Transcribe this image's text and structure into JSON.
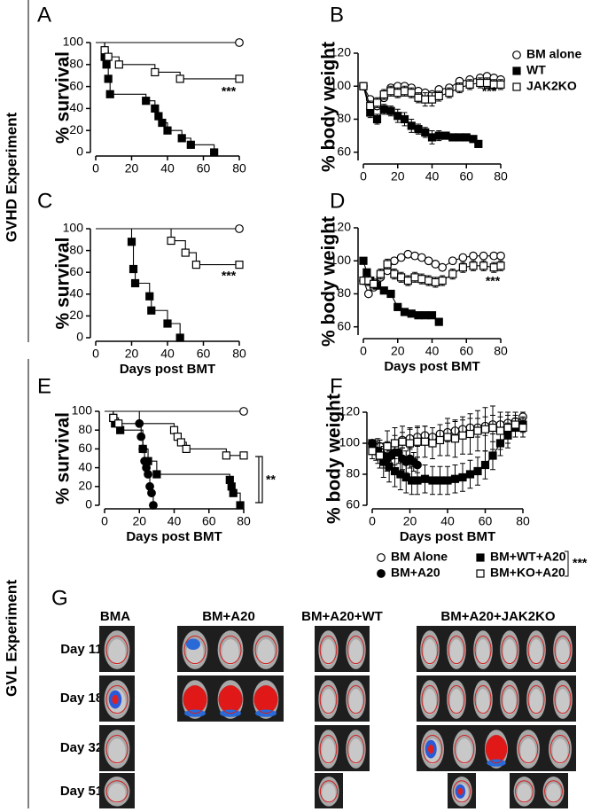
{
  "side_labels": [
    "GVHD Experiment",
    "GVL Experiment"
  ],
  "chart_data": [
    {
      "type": "step",
      "panel": "A",
      "ylabel": "% survival",
      "xlim": [
        0,
        80
      ],
      "xticks": [
        0,
        20,
        40,
        60,
        80
      ],
      "ylim": [
        0,
        100
      ],
      "yticks": [
        0,
        20,
        40,
        60,
        80,
        100
      ],
      "annotation": "***",
      "series": [
        {
          "marker": "open-circle",
          "color": "#000000",
          "x": [
            0,
            80
          ],
          "values": [
            100,
            100
          ]
        },
        {
          "marker": "filled-square",
          "color": "#000000",
          "x": [
            0,
            5,
            6,
            7,
            8,
            28,
            33,
            35,
            37,
            40,
            48,
            53,
            66
          ],
          "values": [
            100,
            87,
            80,
            67,
            53,
            47,
            40,
            33,
            27,
            20,
            13,
            7,
            0
          ]
        },
        {
          "marker": "open-square",
          "color": "#000000",
          "x": [
            0,
            5,
            7,
            13,
            33,
            47,
            80
          ],
          "values": [
            100,
            93,
            87,
            80,
            73,
            67,
            67
          ]
        }
      ]
    },
    {
      "type": "line",
      "panel": "B",
      "ylabel": "% body weight",
      "xlim": [
        0,
        80
      ],
      "xticks": [
        0,
        20,
        40,
        60,
        80
      ],
      "ylim": [
        55,
        120
      ],
      "yticks": [
        60,
        80,
        100,
        120
      ],
      "annotation": "***",
      "series": [
        {
          "name": "BM alone",
          "marker": "open-circle",
          "color": "#000000",
          "x": [
            0,
            4,
            8,
            12,
            16,
            20,
            24,
            28,
            32,
            36,
            40,
            44,
            50,
            56,
            62,
            68,
            72,
            76,
            80
          ],
          "values": [
            100,
            92,
            88,
            93,
            99,
            100,
            100,
            99,
            97,
            96,
            95,
            98,
            99,
            103,
            104,
            105,
            106,
            105,
            104
          ]
        },
        {
          "name": "WT",
          "marker": "filled-square",
          "color": "#000000",
          "x": [
            0,
            4,
            8,
            12,
            16,
            20,
            24,
            28,
            32,
            36,
            40,
            44,
            48,
            52,
            56,
            60,
            64,
            67
          ],
          "values": [
            100,
            84,
            80,
            86,
            85,
            82,
            80,
            76,
            74,
            72,
            69,
            70,
            70,
            69,
            69,
            69,
            68,
            65
          ],
          "errors": [
            0,
            3,
            3,
            3,
            3,
            4,
            4,
            4,
            3,
            3,
            4,
            3,
            2,
            2,
            2,
            2,
            2,
            0
          ]
        },
        {
          "name": "JAK2KO",
          "marker": "open-square",
          "color": "#000000",
          "x": [
            0,
            4,
            8,
            12,
            16,
            20,
            24,
            28,
            32,
            36,
            40,
            44,
            50,
            56,
            62,
            68,
            72,
            76,
            80
          ],
          "values": [
            100,
            88,
            90,
            95,
            97,
            96,
            97,
            96,
            93,
            92,
            92,
            94,
            96,
            99,
            101,
            102,
            102,
            101,
            101
          ],
          "errors": [
            0,
            3,
            3,
            3,
            3,
            3,
            3,
            3,
            3,
            4,
            4,
            3,
            3,
            3,
            3,
            3,
            3,
            3,
            3
          ]
        }
      ]
    },
    {
      "type": "step",
      "panel": "C",
      "ylabel": "% survival",
      "xlabel": "Days post BMT",
      "xlim": [
        0,
        80
      ],
      "xticks": [
        0,
        20,
        40,
        60,
        80
      ],
      "ylim": [
        0,
        100
      ],
      "yticks": [
        0,
        20,
        40,
        60,
        80,
        100
      ],
      "annotation": "***",
      "series": [
        {
          "marker": "open-circle",
          "color": "#000000",
          "x": [
            0,
            80
          ],
          "values": [
            100,
            100
          ]
        },
        {
          "marker": "filled-square",
          "color": "#000000",
          "x": [
            0,
            20,
            21,
            22,
            30,
            31,
            40,
            47
          ],
          "values": [
            100,
            88,
            63,
            50,
            38,
            25,
            13,
            0
          ]
        },
        {
          "marker": "open-square",
          "color": "#000000",
          "x": [
            0,
            42,
            50,
            56,
            80
          ],
          "values": [
            100,
            89,
            78,
            67,
            67
          ]
        }
      ]
    },
    {
      "type": "line",
      "panel": "D",
      "ylabel": "% body weight",
      "xlabel": "Days post BMT",
      "xlim": [
        0,
        80
      ],
      "xticks": [
        0,
        20,
        40,
        60,
        80
      ],
      "ylim": [
        55,
        120
      ],
      "yticks": [
        60,
        80,
        100,
        120
      ],
      "annotation": "***",
      "series": [
        {
          "marker": "open-circle",
          "color": "#000000",
          "x": [
            0,
            3,
            6,
            10,
            14,
            18,
            22,
            26,
            30,
            34,
            38,
            42,
            46,
            52,
            58,
            64,
            70,
            76,
            80
          ],
          "values": [
            88,
            80,
            84,
            90,
            94,
            100,
            102,
            104,
            103,
            102,
            100,
            98,
            96,
            100,
            102,
            103,
            103,
            103,
            103
          ]
        },
        {
          "marker": "filled-square",
          "color": "#000000",
          "x": [
            0,
            2,
            4,
            8,
            12,
            16,
            20,
            24,
            28,
            32,
            36,
            40,
            44
          ],
          "values": [
            100,
            93,
            88,
            85,
            82,
            80,
            72,
            69,
            68,
            67,
            67,
            67,
            63
          ],
          "errors": [
            0,
            2,
            2,
            2,
            2,
            2,
            2,
            2,
            2,
            2,
            2,
            2,
            0
          ]
        },
        {
          "marker": "open-square",
          "color": "#000000",
          "x": [
            0,
            3,
            6,
            10,
            14,
            18,
            22,
            26,
            30,
            34,
            38,
            42,
            46,
            52,
            58,
            64,
            70,
            76,
            80
          ],
          "values": [
            88,
            88,
            86,
            92,
            98,
            92,
            90,
            88,
            90,
            89,
            88,
            87,
            88,
            92,
            96,
            97,
            97,
            96,
            97
          ],
          "errors": [
            0,
            3,
            3,
            3,
            3,
            3,
            3,
            3,
            3,
            3,
            3,
            3,
            3,
            3,
            3,
            3,
            3,
            3,
            3
          ]
        }
      ]
    },
    {
      "type": "step",
      "panel": "E",
      "ylabel": "% survival",
      "xlabel": "Days post BMT",
      "xlim": [
        0,
        80
      ],
      "xticks": [
        0,
        20,
        40,
        60,
        80
      ],
      "ylim": [
        0,
        100
      ],
      "yticks": [
        0,
        20,
        40,
        60,
        80,
        100
      ],
      "annotation": "**",
      "series": [
        {
          "marker": "open-circle",
          "color": "#000000",
          "x": [
            0,
            80
          ],
          "values": [
            100,
            100
          ]
        },
        {
          "marker": "filled-circle",
          "color": "#000000",
          "x": [
            0,
            20,
            21,
            22,
            23,
            24,
            25,
            26,
            27,
            28
          ],
          "values": [
            100,
            87,
            73,
            60,
            47,
            40,
            33,
            20,
            13,
            0
          ]
        },
        {
          "marker": "filled-square",
          "color": "#000000",
          "x": [
            0,
            5,
            6,
            9,
            22,
            25,
            30,
            72,
            73,
            74,
            78
          ],
          "values": [
            100,
            93,
            87,
            80,
            60,
            47,
            33,
            27,
            20,
            13,
            0
          ]
        },
        {
          "marker": "open-square",
          "color": "#000000",
          "x": [
            0,
            5,
            8,
            40,
            42,
            44,
            47,
            70,
            80
          ],
          "values": [
            100,
            93,
            87,
            80,
            73,
            67,
            60,
            53,
            53
          ]
        }
      ]
    },
    {
      "type": "line",
      "panel": "F",
      "ylabel": "% body weight",
      "xlabel": "Days post BMT",
      "xlim": [
        0,
        80
      ],
      "xticks": [
        0,
        20,
        40,
        60,
        80
      ],
      "ylim": [
        60,
        120
      ],
      "yticks": [
        60,
        80,
        100,
        120
      ],
      "annotation": "***",
      "series": [
        {
          "name": "BM Alone",
          "marker": "open-circle",
          "color": "#000000",
          "x": [
            0,
            4,
            8,
            12,
            16,
            20,
            24,
            28,
            32,
            36,
            40,
            44,
            48,
            52,
            56,
            60,
            64,
            68,
            72,
            76,
            80
          ],
          "values": [
            100,
            98,
            96,
            100,
            102,
            103,
            104,
            105,
            104,
            106,
            107,
            108,
            109,
            110,
            110,
            111,
            112,
            112,
            113,
            114,
            117
          ],
          "errors": [
            0,
            4,
            5,
            5,
            5,
            6,
            6,
            6,
            6,
            6,
            6,
            6,
            6,
            6,
            6,
            6,
            6,
            5,
            5,
            4,
            3
          ]
        },
        {
          "name": "BM+A20",
          "marker": "filled-circle",
          "color": "#000000",
          "x": [
            0,
            2,
            4,
            6,
            8,
            10,
            12,
            14,
            16,
            18,
            20,
            22,
            24
          ],
          "values": [
            100,
            95,
            92,
            92,
            90,
            92,
            94,
            94,
            90,
            88,
            90,
            88,
            86
          ],
          "errors": [
            0,
            6,
            8,
            8,
            8,
            8,
            8,
            7,
            7,
            7,
            6,
            6,
            5
          ]
        },
        {
          "name": "BM+WT+A20",
          "marker": "filled-square",
          "color": "#000000",
          "x": [
            0,
            3,
            6,
            9,
            12,
            15,
            18,
            21,
            24,
            28,
            32,
            36,
            40,
            44,
            48,
            52,
            56,
            60,
            64,
            68,
            72,
            76,
            80
          ],
          "values": [
            100,
            95,
            88,
            85,
            82,
            80,
            78,
            76,
            76,
            77,
            76,
            76,
            76,
            77,
            78,
            80,
            82,
            86,
            92,
            100,
            105,
            110,
            112
          ],
          "errors": [
            0,
            8,
            10,
            10,
            10,
            10,
            10,
            9,
            9,
            9,
            9,
            9,
            9,
            9,
            9,
            9,
            9,
            9,
            9,
            8,
            8,
            6,
            5
          ]
        },
        {
          "name": "BM+KO+A20",
          "marker": "open-square",
          "color": "#000000",
          "x": [
            0,
            4,
            8,
            12,
            16,
            20,
            24,
            28,
            32,
            36,
            40,
            44,
            48,
            52,
            56,
            60,
            64,
            68,
            72,
            76,
            80
          ],
          "values": [
            95,
            92,
            98,
            100,
            101,
            100,
            101,
            101,
            100,
            102,
            104,
            103,
            105,
            106,
            108,
            109,
            110,
            108,
            110,
            112,
            110
          ],
          "errors": [
            5,
            8,
            10,
            10,
            10,
            10,
            10,
            10,
            10,
            10,
            12,
            12,
            12,
            13,
            13,
            14,
            14,
            12,
            10,
            8,
            6
          ]
        }
      ]
    }
  ],
  "panel_g": {
    "label": "G",
    "columns": [
      "BMA",
      "BM+A20",
      "BM+A20+WT",
      "BM+A20+JAK2KO"
    ],
    "rows": [
      "Day 11",
      "Day 18",
      "Day 32",
      "Day 51"
    ]
  }
}
